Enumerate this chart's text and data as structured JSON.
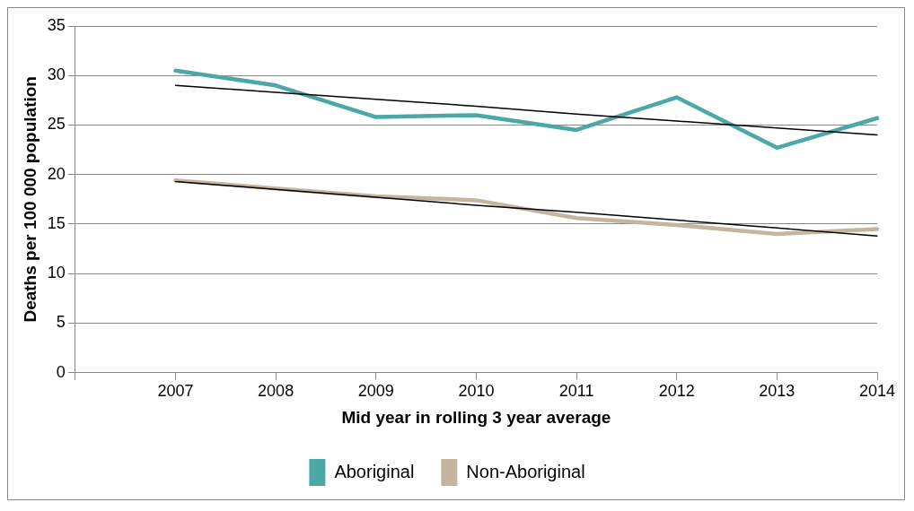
{
  "chart_data": {
    "type": "line",
    "xlabel": "Mid year in rolling 3 year average",
    "ylabel": "Deaths per 100 000 population",
    "categories": [
      null,
      "2007",
      "2008",
      "2009",
      "2010",
      "2011",
      "2012",
      "2013",
      "2014"
    ],
    "series": [
      {
        "name": "Aboriginal",
        "color": "#4aa9a6",
        "values": [
          null,
          30.5,
          29.0,
          25.8,
          26.0,
          24.5,
          27.8,
          22.7,
          25.7
        ]
      },
      {
        "name": "Non-Aboriginal",
        "color": "#c4b59f",
        "values": [
          null,
          19.4,
          18.6,
          17.8,
          17.4,
          15.6,
          14.9,
          14.0,
          14.5
        ]
      },
      {
        "type": "line",
        "color": "#000000",
        "values": [
          null,
          29.0,
          28.3,
          27.6,
          26.9,
          26.1,
          25.4,
          24.7,
          24.0
        ]
      },
      {
        "type": "line",
        "color": "#000000",
        "values": [
          null,
          19.3,
          18.5,
          17.7,
          16.9,
          16.2,
          15.4,
          14.6,
          13.8
        ]
      }
    ],
    "ylim": [
      0,
      35
    ],
    "yticks": [
      0,
      5,
      10,
      15,
      20,
      25,
      30,
      35
    ],
    "grid": "y",
    "legend": "bottom",
    "marker": "none",
    "line_style": "solid"
  }
}
